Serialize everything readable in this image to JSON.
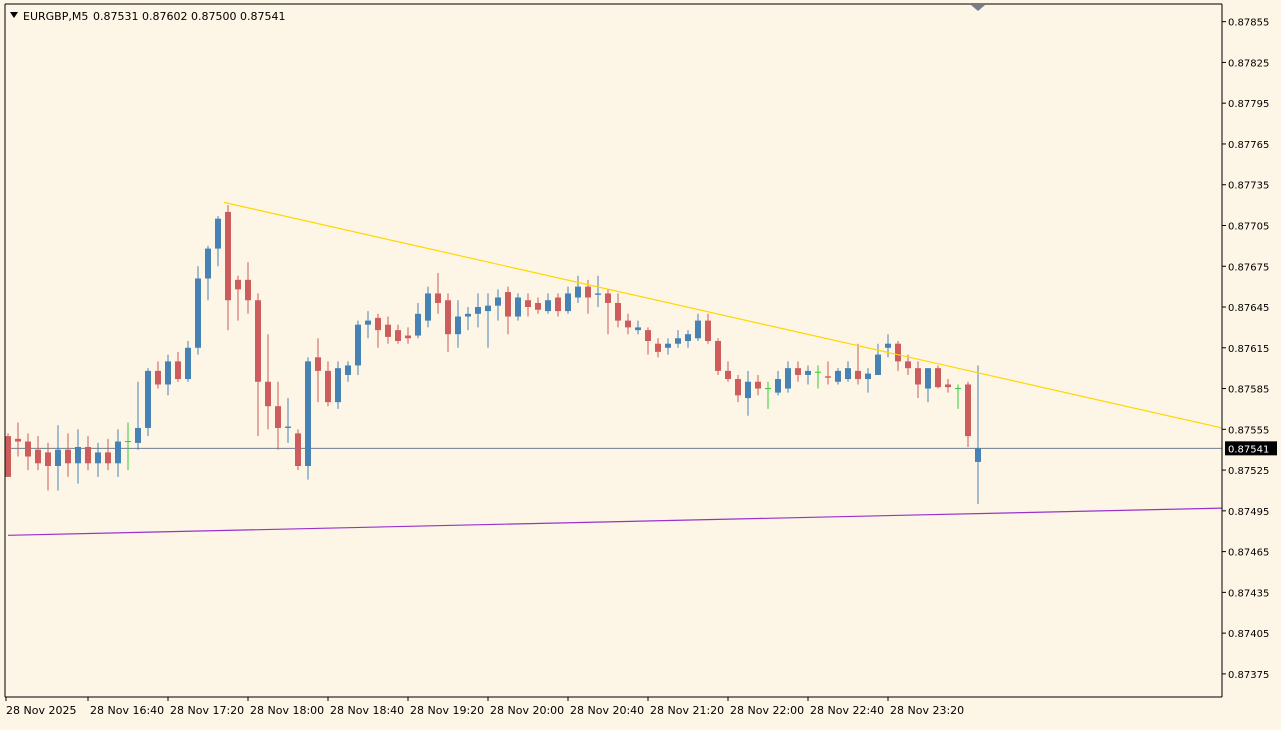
{
  "header": {
    "symbol_label": "EURGBP,M5",
    "ohlc_label": "0.87531 0.87602 0.87500 0.87541"
  },
  "colors": {
    "background": "#fdf5e6",
    "bull": "#4682b4",
    "bear": "#cd5c5c",
    "doji": "#32cd32",
    "trendline_upper": "#ffd700",
    "trendline_lower": "#9932cc",
    "price_line": "#708090",
    "axis": "#000000"
  },
  "chart_data": {
    "type": "candlestick",
    "symbol": "EURGBP",
    "timeframe": "M5",
    "y_range": [
      0.87358,
      0.87868
    ],
    "y_ticks": [
      "0.87855",
      "0.87825",
      "0.87795",
      "0.87765",
      "0.87735",
      "0.87705",
      "0.87675",
      "0.87645",
      "0.87615",
      "0.87585",
      "0.87555",
      "0.87525",
      "0.87495",
      "0.87465",
      "0.87435",
      "0.87405",
      "0.87375"
    ],
    "x_labels": [
      "28 Nov 2025",
      "28 Nov 16:40",
      "28 Nov 17:20",
      "28 Nov 18:00",
      "28 Nov 18:40",
      "28 Nov 19:20",
      "28 Nov 20:00",
      "28 Nov 20:40",
      "28 Nov 21:20",
      "28 Nov 22:00",
      "28 Nov 22:40",
      "28 Nov 23:20"
    ],
    "bars_per_label": 8,
    "current_price": "0.87541",
    "candles": [
      {
        "o": 0.8755,
        "h": 0.87552,
        "l": 0.8752,
        "c": 0.8752
      },
      {
        "o": 0.87548,
        "h": 0.8756,
        "l": 0.87535,
        "c": 0.87546
      },
      {
        "o": 0.87546,
        "h": 0.87552,
        "l": 0.87525,
        "c": 0.87535
      },
      {
        "o": 0.8754,
        "h": 0.8755,
        "l": 0.87525,
        "c": 0.8753
      },
      {
        "o": 0.87538,
        "h": 0.87545,
        "l": 0.8751,
        "c": 0.87528
      },
      {
        "o": 0.87528,
        "h": 0.87558,
        "l": 0.8751,
        "c": 0.8754
      },
      {
        "o": 0.8754,
        "h": 0.87552,
        "l": 0.8752,
        "c": 0.8753
      },
      {
        "o": 0.8753,
        "h": 0.87555,
        "l": 0.87515,
        "c": 0.87542
      },
      {
        "o": 0.87542,
        "h": 0.8755,
        "l": 0.87525,
        "c": 0.8753
      },
      {
        "o": 0.8753,
        "h": 0.87545,
        "l": 0.8752,
        "c": 0.87538
      },
      {
        "o": 0.87538,
        "h": 0.87548,
        "l": 0.87525,
        "c": 0.8753
      },
      {
        "o": 0.8753,
        "h": 0.87555,
        "l": 0.8752,
        "c": 0.87546
      },
      {
        "o": 0.87546,
        "h": 0.8756,
        "l": 0.87525,
        "c": 0.87546
      },
      {
        "o": 0.87545,
        "h": 0.8759,
        "l": 0.8754,
        "c": 0.87556
      },
      {
        "o": 0.87556,
        "h": 0.876,
        "l": 0.8755,
        "c": 0.87598
      },
      {
        "o": 0.87598,
        "h": 0.87605,
        "l": 0.87585,
        "c": 0.87588
      },
      {
        "o": 0.87588,
        "h": 0.8761,
        "l": 0.8758,
        "c": 0.87605
      },
      {
        "o": 0.87605,
        "h": 0.87612,
        "l": 0.8759,
        "c": 0.87592
      },
      {
        "o": 0.87592,
        "h": 0.8762,
        "l": 0.8759,
        "c": 0.87615
      },
      {
        "o": 0.87615,
        "h": 0.87675,
        "l": 0.8761,
        "c": 0.87666
      },
      {
        "o": 0.87666,
        "h": 0.8769,
        "l": 0.8765,
        "c": 0.87688
      },
      {
        "o": 0.87688,
        "h": 0.87712,
        "l": 0.87675,
        "c": 0.8771
      },
      {
        "o": 0.87715,
        "h": 0.8772,
        "l": 0.87628,
        "c": 0.8765
      },
      {
        "o": 0.87665,
        "h": 0.87668,
        "l": 0.87635,
        "c": 0.87658
      },
      {
        "o": 0.87665,
        "h": 0.87678,
        "l": 0.8764,
        "c": 0.8765
      },
      {
        "o": 0.8765,
        "h": 0.87655,
        "l": 0.8755,
        "c": 0.8759
      },
      {
        "o": 0.8759,
        "h": 0.87625,
        "l": 0.87555,
        "c": 0.87572
      },
      {
        "o": 0.87572,
        "h": 0.8759,
        "l": 0.8754,
        "c": 0.87556
      },
      {
        "o": 0.87556,
        "h": 0.87578,
        "l": 0.87545,
        "c": 0.87557
      },
      {
        "o": 0.87552,
        "h": 0.87555,
        "l": 0.87525,
        "c": 0.87528
      },
      {
        "o": 0.87528,
        "h": 0.87608,
        "l": 0.87518,
        "c": 0.87605
      },
      {
        "o": 0.87608,
        "h": 0.87622,
        "l": 0.87575,
        "c": 0.87598
      },
      {
        "o": 0.87598,
        "h": 0.87605,
        "l": 0.87572,
        "c": 0.87575
      },
      {
        "o": 0.87575,
        "h": 0.87605,
        "l": 0.8757,
        "c": 0.876
      },
      {
        "o": 0.87595,
        "h": 0.87605,
        "l": 0.8759,
        "c": 0.87602
      },
      {
        "o": 0.87602,
        "h": 0.87635,
        "l": 0.87595,
        "c": 0.87632
      },
      {
        "o": 0.87632,
        "h": 0.87642,
        "l": 0.87622,
        "c": 0.87635
      },
      {
        "o": 0.87637,
        "h": 0.8764,
        "l": 0.87615,
        "c": 0.87628
      },
      {
        "o": 0.87632,
        "h": 0.87638,
        "l": 0.87618,
        "c": 0.87623
      },
      {
        "o": 0.87628,
        "h": 0.87632,
        "l": 0.87618,
        "c": 0.8762
      },
      {
        "o": 0.87624,
        "h": 0.8763,
        "l": 0.87618,
        "c": 0.87622
      },
      {
        "o": 0.87624,
        "h": 0.87648,
        "l": 0.87622,
        "c": 0.8764
      },
      {
        "o": 0.87635,
        "h": 0.8766,
        "l": 0.8763,
        "c": 0.87655
      },
      {
        "o": 0.87655,
        "h": 0.8767,
        "l": 0.8764,
        "c": 0.87648
      },
      {
        "o": 0.8765,
        "h": 0.87655,
        "l": 0.87612,
        "c": 0.87625
      },
      {
        "o": 0.87625,
        "h": 0.8765,
        "l": 0.87615,
        "c": 0.87638
      },
      {
        "o": 0.87638,
        "h": 0.87645,
        "l": 0.87628,
        "c": 0.8764
      },
      {
        "o": 0.8764,
        "h": 0.87655,
        "l": 0.8763,
        "c": 0.87645
      },
      {
        "o": 0.87642,
        "h": 0.87655,
        "l": 0.87615,
        "c": 0.87646
      },
      {
        "o": 0.87646,
        "h": 0.87658,
        "l": 0.87635,
        "c": 0.87652
      },
      {
        "o": 0.87656,
        "h": 0.8766,
        "l": 0.87625,
        "c": 0.87638
      },
      {
        "o": 0.87638,
        "h": 0.87655,
        "l": 0.87635,
        "c": 0.87652
      },
      {
        "o": 0.8765,
        "h": 0.87655,
        "l": 0.87638,
        "c": 0.87645
      },
      {
        "o": 0.87648,
        "h": 0.87652,
        "l": 0.8764,
        "c": 0.87643
      },
      {
        "o": 0.87642,
        "h": 0.87655,
        "l": 0.8764,
        "c": 0.8765
      },
      {
        "o": 0.87652,
        "h": 0.87655,
        "l": 0.87638,
        "c": 0.87642
      },
      {
        "o": 0.87642,
        "h": 0.8766,
        "l": 0.8764,
        "c": 0.87655
      },
      {
        "o": 0.87652,
        "h": 0.87668,
        "l": 0.87648,
        "c": 0.8766
      },
      {
        "o": 0.8766,
        "h": 0.87665,
        "l": 0.8764,
        "c": 0.87652
      },
      {
        "o": 0.87654,
        "h": 0.87668,
        "l": 0.87645,
        "c": 0.87655
      },
      {
        "o": 0.87655,
        "h": 0.87658,
        "l": 0.87625,
        "c": 0.87648
      },
      {
        "o": 0.87648,
        "h": 0.87655,
        "l": 0.8763,
        "c": 0.87635
      },
      {
        "o": 0.87635,
        "h": 0.8764,
        "l": 0.87625,
        "c": 0.8763
      },
      {
        "o": 0.87628,
        "h": 0.87635,
        "l": 0.87625,
        "c": 0.8763
      },
      {
        "o": 0.87628,
        "h": 0.8763,
        "l": 0.8761,
        "c": 0.8762
      },
      {
        "o": 0.87618,
        "h": 0.87622,
        "l": 0.87608,
        "c": 0.87612
      },
      {
        "o": 0.87615,
        "h": 0.87622,
        "l": 0.8761,
        "c": 0.87618
      },
      {
        "o": 0.87618,
        "h": 0.87628,
        "l": 0.87615,
        "c": 0.87622
      },
      {
        "o": 0.8762,
        "h": 0.87628,
        "l": 0.87615,
        "c": 0.87625
      },
      {
        "o": 0.87622,
        "h": 0.8764,
        "l": 0.8762,
        "c": 0.87635
      },
      {
        "o": 0.87635,
        "h": 0.8764,
        "l": 0.87618,
        "c": 0.8762
      },
      {
        "o": 0.8762,
        "h": 0.87622,
        "l": 0.87595,
        "c": 0.87598
      },
      {
        "o": 0.87598,
        "h": 0.87605,
        "l": 0.8759,
        "c": 0.87592
      },
      {
        "o": 0.87592,
        "h": 0.87595,
        "l": 0.87575,
        "c": 0.8758
      },
      {
        "o": 0.87578,
        "h": 0.87598,
        "l": 0.87565,
        "c": 0.8759
      },
      {
        "o": 0.8759,
        "h": 0.87595,
        "l": 0.8758,
        "c": 0.87585
      },
      {
        "o": 0.87585,
        "h": 0.8759,
        "l": 0.8757,
        "c": 0.87585
      },
      {
        "o": 0.87582,
        "h": 0.87598,
        "l": 0.8758,
        "c": 0.87592
      },
      {
        "o": 0.87585,
        "h": 0.87605,
        "l": 0.87582,
        "c": 0.876
      },
      {
        "o": 0.876,
        "h": 0.87605,
        "l": 0.8759,
        "c": 0.87595
      },
      {
        "o": 0.87595,
        "h": 0.87602,
        "l": 0.87588,
        "c": 0.87598
      },
      {
        "o": 0.87597,
        "h": 0.87602,
        "l": 0.87585,
        "c": 0.87597
      },
      {
        "o": 0.87594,
        "h": 0.87605,
        "l": 0.87588,
        "c": 0.87593
      },
      {
        "o": 0.8759,
        "h": 0.876,
        "l": 0.87588,
        "c": 0.87598
      },
      {
        "o": 0.87592,
        "h": 0.87605,
        "l": 0.8759,
        "c": 0.876
      },
      {
        "o": 0.87598,
        "h": 0.87618,
        "l": 0.87588,
        "c": 0.87592
      },
      {
        "o": 0.87592,
        "h": 0.876,
        "l": 0.87582,
        "c": 0.87596
      },
      {
        "o": 0.87595,
        "h": 0.87618,
        "l": 0.87595,
        "c": 0.8761
      },
      {
        "o": 0.87615,
        "h": 0.87625,
        "l": 0.87608,
        "c": 0.87618
      },
      {
        "o": 0.87618,
        "h": 0.8762,
        "l": 0.87598,
        "c": 0.87605
      },
      {
        "o": 0.87605,
        "h": 0.8761,
        "l": 0.87595,
        "c": 0.876
      },
      {
        "o": 0.876,
        "h": 0.87605,
        "l": 0.87578,
        "c": 0.87588
      },
      {
        "o": 0.87585,
        "h": 0.876,
        "l": 0.87575,
        "c": 0.876
      },
      {
        "o": 0.876,
        "h": 0.87602,
        "l": 0.87585,
        "c": 0.87586
      },
      {
        "o": 0.87588,
        "h": 0.87592,
        "l": 0.87582,
        "c": 0.87586
      },
      {
        "o": 0.87585,
        "h": 0.87588,
        "l": 0.8757,
        "c": 0.87585
      },
      {
        "o": 0.87588,
        "h": 0.8759,
        "l": 0.87542,
        "c": 0.8755
      },
      {
        "o": 0.87531,
        "h": 0.87602,
        "l": 0.875,
        "c": 0.87541
      }
    ],
    "trendlines": [
      {
        "name": "upper",
        "color": "#ffd700",
        "x1": 21.6,
        "y1": 0.87722,
        "x2": 123,
        "y2": 0.87556
      },
      {
        "name": "lower",
        "color": "#9932cc",
        "x1": 0,
        "y1": 0.87477,
        "x2": 123,
        "y2": 0.87497
      }
    ]
  }
}
